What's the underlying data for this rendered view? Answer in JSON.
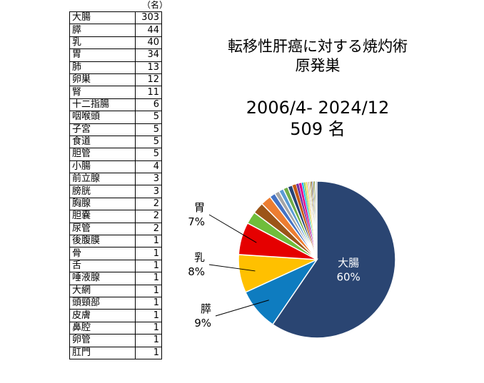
{
  "unit": "（名）",
  "title": {
    "line1": "転移性肝癌に対する焼灼術",
    "line2": "原発巣",
    "period": "2006/4- 2024/12",
    "total": "509 名"
  },
  "table_rows": [
    {
      "site": "大腸",
      "count": "303"
    },
    {
      "site": "膵",
      "count": "44"
    },
    {
      "site": "乳",
      "count": "40"
    },
    {
      "site": "胃",
      "count": "34"
    },
    {
      "site": "肺",
      "count": "13"
    },
    {
      "site": "卵巣",
      "count": "12"
    },
    {
      "site": "腎",
      "count": "11"
    },
    {
      "site": "十二指腸",
      "count": "6"
    },
    {
      "site": "咽喉頭",
      "count": "5"
    },
    {
      "site": "子宮",
      "count": "5"
    },
    {
      "site": "食道",
      "count": "5"
    },
    {
      "site": "胆管",
      "count": "5"
    },
    {
      "site": "小腸",
      "count": "4"
    },
    {
      "site": "前立腺",
      "count": "3"
    },
    {
      "site": "膀胱",
      "count": "3"
    },
    {
      "site": "胸腺",
      "count": "2"
    },
    {
      "site": "胆嚢",
      "count": "2"
    },
    {
      "site": "尿管",
      "count": "2"
    },
    {
      "site": "後腹膜",
      "count": "1"
    },
    {
      "site": "骨",
      "count": "1"
    },
    {
      "site": "舌",
      "count": "1"
    },
    {
      "site": "唾液腺",
      "count": "1"
    },
    {
      "site": "大網",
      "count": "1"
    },
    {
      "site": "頭頸部",
      "count": "1"
    },
    {
      "site": "皮膚",
      "count": "1"
    },
    {
      "site": "鼻腔",
      "count": "1"
    },
    {
      "site": "卵管",
      "count": "1"
    },
    {
      "site": "肛門",
      "count": "1"
    }
  ],
  "chart_data": {
    "type": "pie",
    "title": "転移性肝癌に対する焼灼術 原発巣",
    "total": 509,
    "categories": [
      "大腸",
      "膵",
      "乳",
      "胃",
      "肺",
      "卵巣",
      "腎",
      "十二指腸",
      "咽喉頭",
      "子宮",
      "食道",
      "胆管",
      "小腸",
      "前立腺",
      "膀胱",
      "胸腺",
      "胆嚢",
      "尿管",
      "後腹膜",
      "骨",
      "舌",
      "唾液腺",
      "大網",
      "頭頸部",
      "皮膚",
      "鼻腔",
      "卵管",
      "肛門"
    ],
    "values": [
      303,
      44,
      40,
      34,
      13,
      12,
      11,
      6,
      5,
      5,
      5,
      5,
      4,
      3,
      3,
      2,
      2,
      2,
      1,
      1,
      1,
      1,
      1,
      1,
      1,
      1,
      1,
      1
    ],
    "colors": [
      "#2a4572",
      "#0e7cc0",
      "#ffc000",
      "#e50000",
      "#6fbd3b",
      "#9c5518",
      "#ed7d31",
      "#4472c4",
      "#a5a5a5",
      "#5b9bd5",
      "#70ad47",
      "#264478",
      "#c55a11",
      "#7030a0",
      "#e5008a",
      "#00b0f0",
      "#92d050",
      "#ffd966",
      "#8faadc",
      "#f4b183",
      "#a9d18e",
      "#7f6000",
      "#843c0c",
      "#2e75b6",
      "#bf9000",
      "#548235",
      "#d6dce5",
      "#bfbfbf"
    ],
    "slice_labels": [
      {
        "name": "大腸",
        "percent": "60%"
      },
      {
        "name": "膵",
        "percent": "9%"
      },
      {
        "name": "乳",
        "percent": "8%"
      },
      {
        "name": "胃",
        "percent": "7%"
      }
    ]
  }
}
